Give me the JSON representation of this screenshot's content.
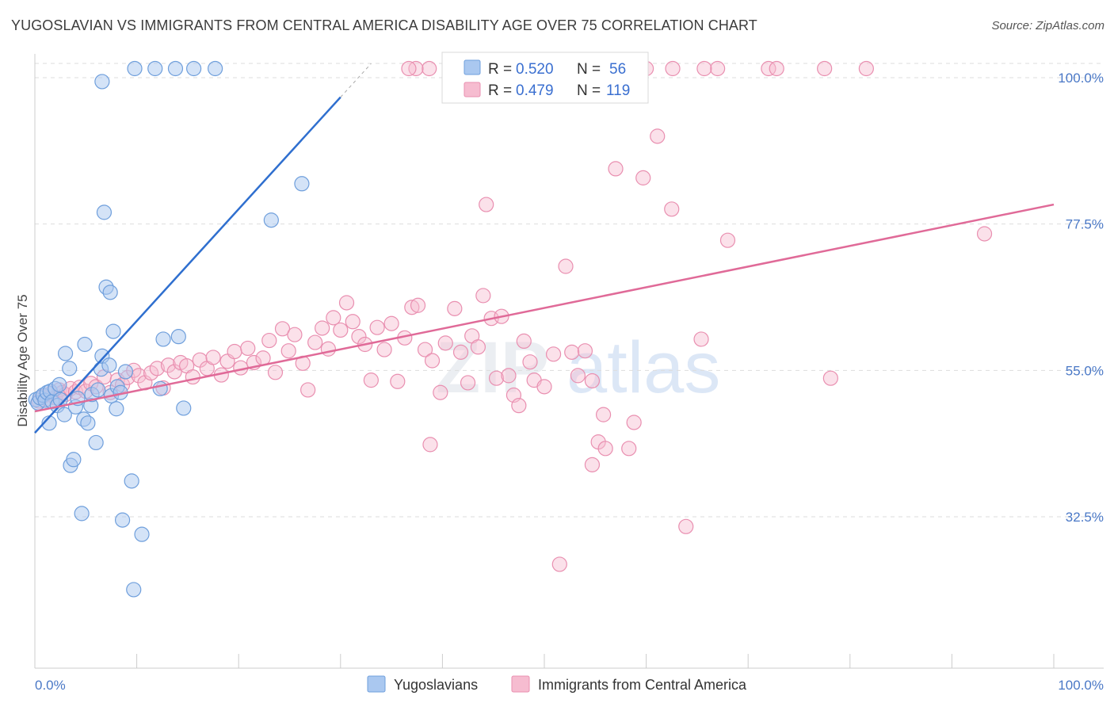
{
  "title": "YUGOSLAVIAN VS IMMIGRANTS FROM CENTRAL AMERICA DISABILITY AGE OVER 75 CORRELATION CHART",
  "source": "Source: ZipAtlas.com",
  "watermark": "ZIPatlas",
  "legend_box": {
    "rows": [
      {
        "r_label": "R =",
        "r_value": "0.520",
        "n_label": "N =",
        "n_value": "56"
      },
      {
        "r_label": "R =",
        "r_value": "0.479",
        "n_label": "N =",
        "n_value": "119"
      }
    ]
  },
  "colors": {
    "yugoslavians_fill": "#aac8f0",
    "yugoslavians_stroke": "#6f9fdc",
    "yugoslavians_line": "#2f6fcf",
    "immigrants_fill": "#f6bcd0",
    "immigrants_stroke": "#e98fb0",
    "immigrants_line": "#e06a98",
    "grid": "#dddddd",
    "tick_text": "#4a78c6"
  },
  "chart_data": {
    "type": "scatter",
    "xlabel": "",
    "ylabel": "Disability Age Over 75",
    "xlim": [
      0,
      100
    ],
    "ylim": [
      20,
      100
    ],
    "x_tick_labels": [
      "0.0%",
      "100.0%"
    ],
    "y_ticks": [
      {
        "value": 100,
        "label": "100.0%"
      },
      {
        "value": 77.5,
        "label": "77.5%"
      },
      {
        "value": 55,
        "label": "55.0%"
      },
      {
        "value": 32.5,
        "label": "32.5%"
      }
    ],
    "grid": "horizontal dashed",
    "series": [
      {
        "name": "Yugoslavians",
        "R": 0.52,
        "N": 56,
        "trend": {
          "x0": 0,
          "y0": 45.4,
          "x1": 30,
          "y1": 97.0,
          "dash_to_x": 33
        },
        "points": [
          [
            0.1,
            50.5
          ],
          [
            0.3,
            50
          ],
          [
            0.5,
            50.8
          ],
          [
            0.8,
            51.2
          ],
          [
            1.0,
            50.4
          ],
          [
            1.2,
            51.6
          ],
          [
            1.5,
            51.8
          ],
          [
            1.7,
            50.2
          ],
          [
            2.0,
            52.2
          ],
          [
            2.2,
            49.6
          ],
          [
            2.5,
            50.5
          ],
          [
            2.9,
            48.2
          ],
          [
            3.0,
            57.6
          ],
          [
            3.4,
            55.3
          ],
          [
            3.5,
            40.4
          ],
          [
            3.8,
            41.3
          ],
          [
            4.0,
            49.4
          ],
          [
            4.2,
            50.7
          ],
          [
            4.6,
            33.0
          ],
          [
            4.8,
            47.5
          ],
          [
            4.9,
            59.0
          ],
          [
            5.2,
            46.9
          ],
          [
            5.5,
            49.6
          ],
          [
            5.6,
            51.3
          ],
          [
            6.0,
            43.9
          ],
          [
            6.2,
            52.0
          ],
          [
            6.5,
            55.2
          ],
          [
            6.6,
            57.2
          ],
          [
            6.6,
            99.4
          ],
          [
            6.8,
            79.3
          ],
          [
            7.0,
            67.8
          ],
          [
            7.3,
            55.8
          ],
          [
            7.4,
            67.0
          ],
          [
            7.5,
            51.1
          ],
          [
            7.7,
            61.0
          ],
          [
            8.0,
            49.1
          ],
          [
            8.1,
            52.5
          ],
          [
            8.4,
            51.6
          ],
          [
            8.6,
            32.0
          ],
          [
            8.9,
            54.8
          ],
          [
            9.5,
            38.0
          ],
          [
            9.7,
            21.3
          ],
          [
            9.8,
            101.4
          ],
          [
            10.5,
            29.8
          ],
          [
            11.8,
            101.4
          ],
          [
            12.3,
            52.2
          ],
          [
            12.6,
            59.8
          ],
          [
            13.8,
            101.4
          ],
          [
            14.1,
            60.2
          ],
          [
            14.6,
            49.2
          ],
          [
            15.6,
            101.4
          ],
          [
            17.7,
            101.4
          ],
          [
            23.2,
            78.1
          ],
          [
            26.2,
            83.7
          ],
          [
            1.4,
            46.9
          ],
          [
            2.4,
            52.8
          ]
        ]
      },
      {
        "name": "Immigrants from Central America",
        "R": 0.479,
        "N": 119,
        "trend": {
          "x0": 0,
          "y0": 48.7,
          "x1": 100,
          "y1": 80.5
        },
        "points": [
          [
            0.4,
            50.3
          ],
          [
            0.8,
            51.0
          ],
          [
            1.2,
            50.6
          ],
          [
            1.6,
            51.5
          ],
          [
            2.0,
            50.8
          ],
          [
            2.4,
            52.0
          ],
          [
            2.7,
            51.6
          ],
          [
            3.0,
            51.3
          ],
          [
            3.5,
            52.2
          ],
          [
            4.0,
            51.7
          ],
          [
            4.4,
            52.4
          ],
          [
            5.0,
            51.8
          ],
          [
            5.5,
            53.0
          ],
          [
            6.0,
            52.5
          ],
          [
            6.8,
            54.0
          ],
          [
            7.4,
            51.6
          ],
          [
            8.1,
            53.5
          ],
          [
            8.6,
            52.8
          ],
          [
            9.1,
            53.9
          ],
          [
            9.7,
            55.0
          ],
          [
            10.2,
            54.2
          ],
          [
            10.8,
            53.1
          ],
          [
            11.4,
            54.6
          ],
          [
            12.0,
            55.3
          ],
          [
            12.6,
            52.3
          ],
          [
            13.1,
            55.8
          ],
          [
            13.7,
            54.8
          ],
          [
            14.3,
            56.2
          ],
          [
            14.9,
            55.7
          ],
          [
            15.5,
            54.0
          ],
          [
            16.2,
            56.6
          ],
          [
            16.9,
            55.3
          ],
          [
            17.5,
            57.0
          ],
          [
            18.3,
            54.3
          ],
          [
            18.9,
            56.4
          ],
          [
            19.6,
            57.9
          ],
          [
            20.2,
            55.4
          ],
          [
            20.9,
            58.4
          ],
          [
            21.5,
            56.2
          ],
          [
            22.4,
            56.9
          ],
          [
            23.0,
            59.6
          ],
          [
            23.6,
            54.7
          ],
          [
            24.3,
            61.4
          ],
          [
            24.9,
            58.0
          ],
          [
            25.5,
            60.5
          ],
          [
            26.3,
            56.1
          ],
          [
            26.8,
            52.0
          ],
          [
            27.5,
            59.3
          ],
          [
            28.2,
            61.5
          ],
          [
            28.8,
            58.3
          ],
          [
            29.3,
            63.1
          ],
          [
            30.0,
            61.2
          ],
          [
            30.6,
            65.4
          ],
          [
            31.2,
            62.5
          ],
          [
            31.8,
            60.2
          ],
          [
            32.4,
            59.0
          ],
          [
            33.0,
            53.5
          ],
          [
            33.6,
            61.6
          ],
          [
            34.3,
            58.2
          ],
          [
            35.0,
            62.2
          ],
          [
            35.6,
            53.3
          ],
          [
            36.3,
            60.0
          ],
          [
            37.0,
            64.7
          ],
          [
            37.6,
            65.0
          ],
          [
            38.3,
            58.2
          ],
          [
            38.8,
            43.6
          ],
          [
            39.0,
            56.5
          ],
          [
            39.8,
            51.6
          ],
          [
            40.3,
            59.2
          ],
          [
            41.2,
            64.5
          ],
          [
            41.8,
            57.8
          ],
          [
            42.5,
            53.1
          ],
          [
            42.9,
            60.3
          ],
          [
            43.5,
            58.6
          ],
          [
            44.0,
            66.5
          ],
          [
            44.8,
            63.0
          ],
          [
            45.3,
            53.8
          ],
          [
            45.8,
            63.3
          ],
          [
            46.5,
            54.2
          ],
          [
            47.0,
            51.2
          ],
          [
            47.5,
            49.6
          ],
          [
            48.0,
            59.5
          ],
          [
            48.6,
            56.3
          ],
          [
            49.0,
            53.5
          ],
          [
            50.0,
            52.5
          ],
          [
            50.9,
            57.5
          ],
          [
            51.5,
            25.2
          ],
          [
            52.1,
            71.0
          ],
          [
            52.7,
            57.8
          ],
          [
            53.3,
            54.2
          ],
          [
            54.0,
            58.0
          ],
          [
            54.7,
            53.4
          ],
          [
            55.3,
            44.0
          ],
          [
            56.0,
            43.0
          ],
          [
            57.0,
            86.0
          ],
          [
            58.3,
            43.0
          ],
          [
            58.8,
            47.0
          ],
          [
            59.7,
            84.6
          ],
          [
            61.1,
            91.0
          ],
          [
            62.5,
            79.8
          ],
          [
            63.9,
            31.0
          ],
          [
            65.4,
            59.8
          ],
          [
            67.0,
            101.4
          ],
          [
            68.0,
            75.0
          ],
          [
            72.0,
            101.4
          ],
          [
            72.8,
            101.4
          ],
          [
            77.5,
            101.4
          ],
          [
            81.6,
            101.4
          ],
          [
            78.1,
            53.8
          ],
          [
            93.2,
            76.0
          ],
          [
            44.3,
            80.5
          ],
          [
            65.7,
            101.4
          ],
          [
            62.6,
            101.4
          ],
          [
            60.0,
            101.4
          ],
          [
            38.7,
            101.4
          ],
          [
            37.4,
            101.4
          ],
          [
            36.7,
            101.4
          ],
          [
            55.8,
            48.2
          ],
          [
            54.7,
            40.5
          ]
        ]
      }
    ]
  },
  "bottom_legend": [
    {
      "label": "Yugoslavians"
    },
    {
      "label": "Immigrants from Central America"
    }
  ]
}
